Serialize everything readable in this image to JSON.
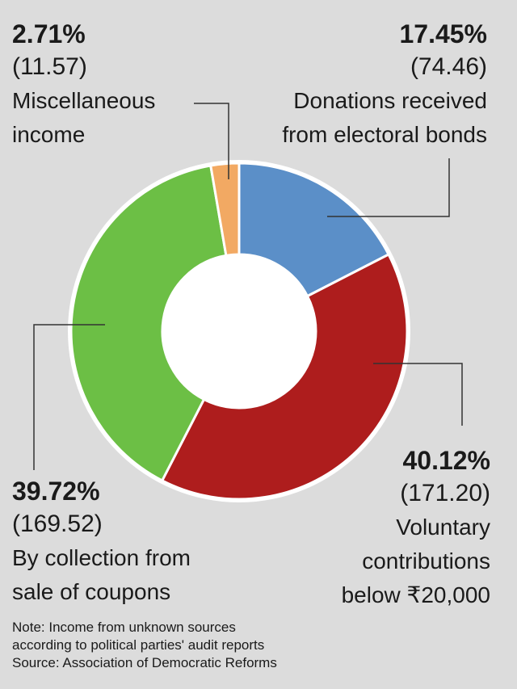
{
  "chart_data": {
    "type": "donut",
    "categories": [
      "Donations received\nfrom electoral bonds",
      "Voluntary\ncontributions\nbelow ₹20,000",
      "By collection from\nsale of coupons",
      "Miscellaneous\nincome"
    ],
    "values": [
      17.45,
      40.12,
      39.72,
      2.71
    ],
    "value_labels": [
      "17.45%",
      "40.12%",
      "39.72%",
      "2.71%"
    ],
    "amounts": [
      74.46,
      171.2,
      169.52,
      11.57
    ],
    "amount_labels": [
      "(74.46)",
      "(171.20)",
      "(169.52)",
      "(11.57)"
    ],
    "colors": [
      "#5b8fc8",
      "#ae1d1d",
      "#6cbf45",
      "#f2a963"
    ],
    "notes": [
      "Note: Income from unknown sources",
      "according to political parties' audit reports",
      "Source: Association of Democratic Reforms"
    ]
  }
}
